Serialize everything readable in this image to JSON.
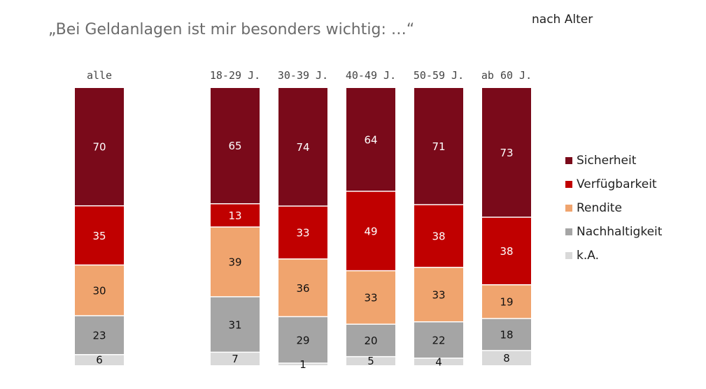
{
  "title": "„Bei Geldanlagen ist mir besonders wichtig: …“",
  "subtitle": "nach Alter",
  "chart_data": {
    "type": "bar",
    "stacked": true,
    "categories": [
      "alle",
      "18-29 J.",
      "30-39 J.",
      "40-49 J.",
      "50-59 J.",
      "ab 60 J."
    ],
    "series": [
      {
        "name": "Sicherheit",
        "color": "#7a0a1a",
        "values": [
          70,
          65,
          74,
          64,
          71,
          73
        ]
      },
      {
        "name": "Verfügbarkeit",
        "color": "#c00000",
        "values": [
          35,
          13,
          33,
          49,
          38,
          38
        ]
      },
      {
        "name": "Rendite",
        "color": "#f0a46e",
        "values": [
          30,
          39,
          36,
          33,
          33,
          19
        ]
      },
      {
        "name": "Nachhaltigkeit",
        "color": "#a5a5a5",
        "values": [
          23,
          31,
          29,
          20,
          22,
          18
        ]
      },
      {
        "name": "k.A.",
        "color": "#d9d9d9",
        "values": [
          6,
          7,
          1,
          5,
          4,
          8
        ]
      }
    ],
    "legend_position": "right",
    "grid": false
  }
}
